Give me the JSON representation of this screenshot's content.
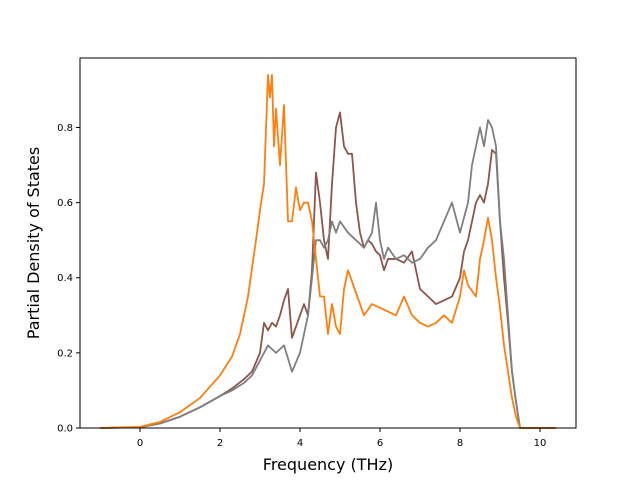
{
  "chart_data": {
    "type": "line",
    "title": "",
    "xlabel": "Frequency (THz)",
    "ylabel": "Partial Density of States",
    "xlim": [
      -1.5,
      10.9
    ],
    "ylim": [
      0,
      0.985
    ],
    "xticks": [
      0,
      2,
      4,
      6,
      8,
      10
    ],
    "xtick_labels": [
      "0",
      "2",
      "4",
      "6",
      "8",
      "10"
    ],
    "yticks": [
      0.0,
      0.2,
      0.4,
      0.6,
      0.8
    ],
    "ytick_labels": [
      "0.0",
      "0.2",
      "0.4",
      "0.6",
      "0.8"
    ],
    "grid": false,
    "legend": false,
    "series": [
      {
        "color": "#8c564b",
        "x": [
          -1.0,
          0.0,
          0.5,
          1.0,
          1.5,
          2.0,
          2.3,
          2.6,
          2.8,
          3.0,
          3.1,
          3.2,
          3.3,
          3.4,
          3.5,
          3.6,
          3.7,
          3.8,
          3.9,
          4.0,
          4.1,
          4.2,
          4.3,
          4.4,
          4.5,
          4.6,
          4.7,
          4.8,
          4.9,
          5.0,
          5.1,
          5.2,
          5.3,
          5.4,
          5.5,
          5.6,
          5.7,
          5.8,
          5.9,
          6.0,
          6.1,
          6.2,
          6.4,
          6.6,
          6.8,
          7.0,
          7.2,
          7.4,
          7.6,
          7.8,
          8.0,
          8.1,
          8.2,
          8.3,
          8.4,
          8.5,
          8.6,
          8.7,
          8.8,
          8.9,
          9.0,
          9.1,
          9.2,
          9.3,
          9.4,
          9.5,
          9.7,
          10.0,
          10.4
        ],
        "y": [
          0.0,
          0.002,
          0.012,
          0.03,
          0.055,
          0.085,
          0.105,
          0.13,
          0.15,
          0.2,
          0.28,
          0.26,
          0.28,
          0.27,
          0.3,
          0.34,
          0.37,
          0.24,
          0.27,
          0.3,
          0.33,
          0.3,
          0.42,
          0.68,
          0.6,
          0.5,
          0.45,
          0.65,
          0.8,
          0.84,
          0.75,
          0.73,
          0.73,
          0.6,
          0.52,
          0.48,
          0.5,
          0.49,
          0.47,
          0.46,
          0.42,
          0.45,
          0.45,
          0.44,
          0.47,
          0.37,
          0.35,
          0.33,
          0.34,
          0.35,
          0.4,
          0.47,
          0.5,
          0.55,
          0.6,
          0.62,
          0.6,
          0.65,
          0.74,
          0.73,
          0.55,
          0.4,
          0.28,
          0.15,
          0.07,
          0.0,
          0.0,
          0.0,
          0.0
        ]
      },
      {
        "color": "#7f7f7f",
        "x": [
          -1.0,
          0.0,
          0.5,
          1.0,
          1.5,
          2.0,
          2.3,
          2.6,
          2.8,
          3.0,
          3.2,
          3.4,
          3.6,
          3.8,
          4.0,
          4.1,
          4.2,
          4.3,
          4.4,
          4.5,
          4.6,
          4.7,
          4.8,
          4.9,
          5.0,
          5.2,
          5.4,
          5.6,
          5.8,
          5.9,
          6.0,
          6.1,
          6.2,
          6.4,
          6.6,
          6.8,
          7.0,
          7.2,
          7.4,
          7.6,
          7.8,
          8.0,
          8.2,
          8.3,
          8.4,
          8.5,
          8.6,
          8.7,
          8.8,
          8.9,
          9.0,
          9.1,
          9.2,
          9.3,
          9.4,
          9.5,
          9.7,
          10.0,
          10.4
        ],
        "y": [
          0.0,
          0.002,
          0.012,
          0.03,
          0.055,
          0.085,
          0.1,
          0.12,
          0.14,
          0.18,
          0.22,
          0.2,
          0.22,
          0.15,
          0.2,
          0.25,
          0.3,
          0.4,
          0.5,
          0.5,
          0.48,
          0.5,
          0.55,
          0.52,
          0.55,
          0.52,
          0.5,
          0.48,
          0.52,
          0.6,
          0.5,
          0.45,
          0.48,
          0.45,
          0.46,
          0.44,
          0.45,
          0.48,
          0.5,
          0.55,
          0.6,
          0.52,
          0.6,
          0.7,
          0.75,
          0.8,
          0.75,
          0.82,
          0.8,
          0.75,
          0.55,
          0.45,
          0.3,
          0.15,
          0.07,
          0.0,
          0.0,
          0.0,
          0.0
        ]
      },
      {
        "color": "#ff7f0e",
        "x": [
          -1.0,
          0.0,
          0.5,
          1.0,
          1.5,
          2.0,
          2.3,
          2.5,
          2.7,
          2.9,
          3.0,
          3.1,
          3.2,
          3.25,
          3.3,
          3.35,
          3.4,
          3.5,
          3.6,
          3.7,
          3.8,
          3.9,
          4.0,
          4.1,
          4.2,
          4.3,
          4.4,
          4.5,
          4.6,
          4.7,
          4.8,
          4.9,
          5.0,
          5.1,
          5.2,
          5.4,
          5.6,
          5.8,
          6.0,
          6.2,
          6.4,
          6.6,
          6.8,
          7.0,
          7.2,
          7.4,
          7.6,
          7.8,
          8.0,
          8.1,
          8.2,
          8.4,
          8.5,
          8.6,
          8.7,
          8.8,
          8.9,
          9.0,
          9.1,
          9.2,
          9.3,
          9.4,
          9.5,
          9.7,
          10.0,
          10.4
        ],
        "y": [
          0.0,
          0.003,
          0.016,
          0.042,
          0.08,
          0.14,
          0.19,
          0.25,
          0.35,
          0.5,
          0.58,
          0.65,
          0.94,
          0.88,
          0.94,
          0.75,
          0.85,
          0.7,
          0.86,
          0.55,
          0.55,
          0.64,
          0.58,
          0.6,
          0.6,
          0.55,
          0.45,
          0.35,
          0.35,
          0.25,
          0.33,
          0.27,
          0.25,
          0.37,
          0.42,
          0.36,
          0.3,
          0.33,
          0.32,
          0.31,
          0.3,
          0.35,
          0.3,
          0.28,
          0.27,
          0.28,
          0.3,
          0.28,
          0.35,
          0.42,
          0.38,
          0.35,
          0.45,
          0.5,
          0.56,
          0.5,
          0.4,
          0.32,
          0.22,
          0.15,
          0.08,
          0.03,
          0.0,
          0.0,
          0.0,
          0.0
        ]
      }
    ]
  }
}
